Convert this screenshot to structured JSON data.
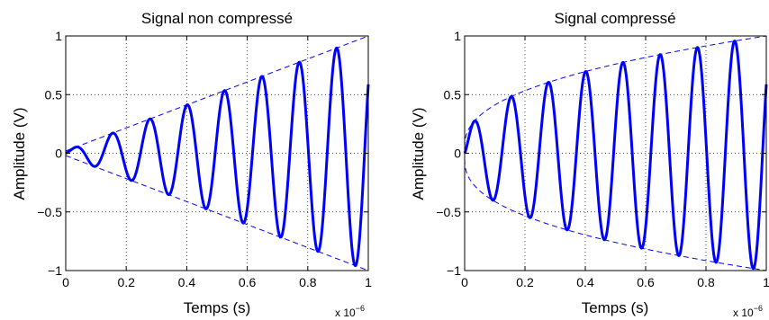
{
  "chart_data": [
    {
      "type": "line",
      "title": "Signal non compressé",
      "xlabel": "Temps (s)",
      "ylabel": "Amplitude (V)",
      "xlim": [
        0,
        1
      ],
      "ylim": [
        -1,
        1
      ],
      "x_scale_note": "x 10",
      "x_scale_exponent": "−6",
      "x_ticks": [
        "0",
        "0.2",
        "0.4",
        "0.6",
        "0.8",
        "1"
      ],
      "y_ticks": [
        "−1",
        "−0.5",
        "0",
        "0.5",
        "1"
      ],
      "grid": true,
      "series": [
        {
          "style": "solid",
          "color": "#0000ff",
          "frequency_cycles_per_unit": 8.1,
          "envelope": "linear",
          "phase": "sine"
        },
        {
          "style": "dashed",
          "color": "#0000ff",
          "envelope": "linear",
          "sign": 1
        },
        {
          "style": "dashed",
          "color": "#0000ff",
          "envelope": "linear",
          "sign": -1
        }
      ]
    },
    {
      "type": "line",
      "title": "Signal compressé",
      "xlabel": "Temps (s)",
      "ylabel": "Amplitude (V)",
      "xlim": [
        0,
        1
      ],
      "ylim": [
        -1,
        1
      ],
      "x_scale_note": "x 10",
      "x_scale_exponent": "−6",
      "x_ticks": [
        "0",
        "0.2",
        "0.4",
        "0.6",
        "0.8",
        "1"
      ],
      "y_ticks": [
        "−1",
        "−0.5",
        "0",
        "0.5",
        "1"
      ],
      "grid": true,
      "series": [
        {
          "style": "solid",
          "color": "#0000ff",
          "frequency_cycles_per_unit": 8.1,
          "envelope": "compressed",
          "phase": "sine"
        },
        {
          "style": "dashed",
          "color": "#0000ff",
          "envelope": "compressed",
          "sign": 1
        },
        {
          "style": "dashed",
          "color": "#0000ff",
          "envelope": "compressed",
          "sign": -1
        }
      ]
    }
  ]
}
